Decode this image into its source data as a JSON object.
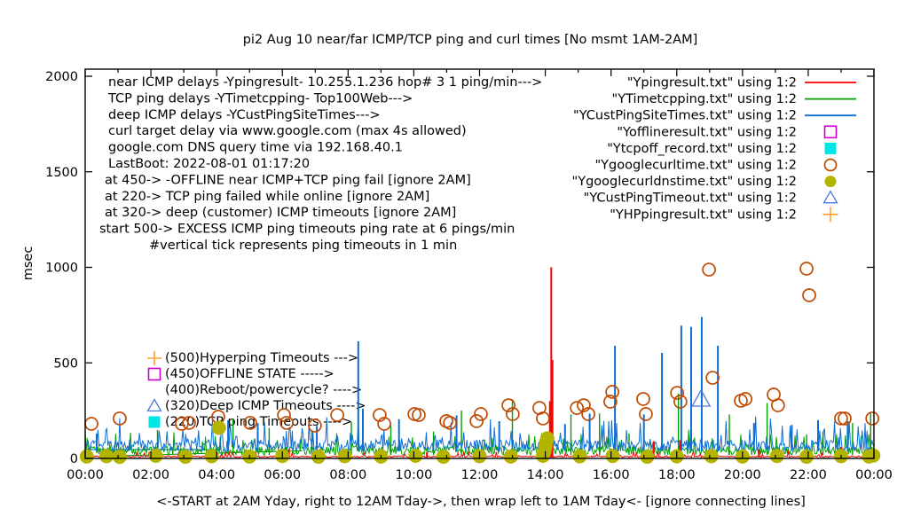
{
  "chart_data": {
    "type": "line",
    "title": "pi2 Aug 10  near/far ICMP/TCP ping and curl times [No msmt 1AM-2AM]",
    "ylabel": "msec",
    "xlabel": "<-START at 2AM Yday, right to 12AM Tday->, then wrap left to 1AM Tday<- [ignore connecting lines]",
    "ylim": [
      0,
      2000
    ],
    "xlim_hours": [
      0,
      24
    ],
    "grid": false,
    "background": "#ffffff",
    "frame_color": "#000000",
    "yticks": [
      {
        "v": 0,
        "label": "0"
      },
      {
        "v": 500,
        "label": "500"
      },
      {
        "v": 1000,
        "label": "1000"
      },
      {
        "v": 1500,
        "label": "1500"
      },
      {
        "v": 2000,
        "label": "2000"
      }
    ],
    "xticks": [
      {
        "h": 0,
        "label": "00:00"
      },
      {
        "h": 2,
        "label": "02:00"
      },
      {
        "h": 4,
        "label": "04:00"
      },
      {
        "h": 6,
        "label": "06:00"
      },
      {
        "h": 8,
        "label": "08:00"
      },
      {
        "h": 10,
        "label": "10:00"
      },
      {
        "h": 12,
        "label": "12:00"
      },
      {
        "h": 14,
        "label": "14:00"
      },
      {
        "h": 16,
        "label": "16:00"
      },
      {
        "h": 18,
        "label": "18:00"
      },
      {
        "h": 20,
        "label": "20:00"
      },
      {
        "h": 22,
        "label": "22:00"
      },
      {
        "h": 24,
        "label": "00:00"
      }
    ],
    "xtick_minor_hours": [
      1,
      3,
      5,
      7,
      9,
      11,
      13,
      15,
      17,
      19,
      21,
      23
    ],
    "legend_position": "top-right",
    "legend": [
      {
        "label": "\"Ypingresult.txt\" using 1:2",
        "sample": "line",
        "color": "#ff0000"
      },
      {
        "label": "\"YTimetcpping.txt\" using 1:2",
        "sample": "line",
        "color": "#00a000"
      },
      {
        "label": "\"YCustPingSiteTimes.txt\" using 1:2",
        "sample": "line",
        "color": "#0e6ed4"
      },
      {
        "label": "\"Yofflineresult.txt\" using 1:2",
        "sample": "square-open",
        "color": "#cc00cc"
      },
      {
        "label": "\"Ytcpoff_record.txt\" using 1:2",
        "sample": "square-filled",
        "color": "#00e6e6"
      },
      {
        "label": "\"Ygooglecurltime.txt\" using 1:2",
        "sample": "circle-open",
        "color": "#c04a00"
      },
      {
        "label": "\"Ygooglecurldnstime.txt\" using 1:2",
        "sample": "circle-filled",
        "color": "#b4b400"
      },
      {
        "label": "\"YCustPingTimeout.txt\" using 1:2",
        "sample": "triangle-open",
        "color": "#4a78d8"
      },
      {
        "label": "\"YHPpingresult.txt\" using 1:2",
        "sample": "plus",
        "color": "#ffa030"
      }
    ],
    "info_annotations": [
      {
        "x": 122,
        "text": "near ICMP delays -Ypingresult- 10.255.1.236 hop# 3 1 ping/min--->"
      },
      {
        "x": 122,
        "text": "TCP ping delays -YTimetcpping- Top100Web--->"
      },
      {
        "x": 122,
        "text": "deep ICMP delays -YCustPingSiteTimes--->"
      },
      {
        "x": 122,
        "text": "curl target delay via www.google.com (max 4s allowed)"
      },
      {
        "x": 122,
        "text": "google.com DNS query time via 192.168.40.1"
      },
      {
        "x": 122,
        "text": "LastBoot: 2022-08-01 01:17:20"
      },
      {
        "x": 118,
        "text": "at 450-> -OFFLINE near ICMP+TCP ping fail [ignore 2AM]"
      },
      {
        "x": 118,
        "text": "at 220-> TCP ping failed while online [ignore 2AM]"
      },
      {
        "x": 118,
        "text": "at 320-> deep (customer) ICMP timeouts [ignore 2AM]"
      },
      {
        "x": 112,
        "text": "start 500-> EXCESS ICMP ping timeouts ping rate at 6 pings/min"
      },
      {
        "x": 168,
        "text": "#vertical tick represents ping timeouts in 1 min"
      }
    ],
    "key_annotations": [
      {
        "marker": "plus",
        "color": "#ffa030",
        "text": "(500)Hyperping Timeouts --->"
      },
      {
        "marker": "square-open",
        "color": "#cc00cc",
        "text": "(450)OFFLINE STATE ----->"
      },
      {
        "marker": "none",
        "color": "#000000",
        "text": "(400)Reboot/powercycle? ---->"
      },
      {
        "marker": "triangle-open",
        "color": "#4a78d8",
        "text": "(320)Deep ICMP Timeouts ---->"
      },
      {
        "marker": "square-filled",
        "color": "#00e6e6",
        "text": "(220)TCP ping Timeouts ---->"
      }
    ],
    "series": [
      {
        "name": "YTimetcpping",
        "color": "#00a000",
        "base": 18,
        "amp": 45,
        "burst_p": 0.88,
        "burst_amp": 110,
        "line_width": 1,
        "spike_width": 1.4,
        "spikes": [
          [
            2.2,
            150
          ],
          [
            4.5,
            205
          ],
          [
            5.6,
            160
          ],
          [
            6.9,
            140
          ],
          [
            8.1,
            190
          ],
          [
            9.3,
            170
          ],
          [
            10.6,
            140
          ],
          [
            11.45,
            250
          ],
          [
            13.0,
            310
          ],
          [
            14.78,
            230
          ],
          [
            15.65,
            235
          ],
          [
            16.55,
            130
          ],
          [
            18.05,
            340
          ],
          [
            19.6,
            230
          ],
          [
            20.75,
            290
          ],
          [
            21.95,
            125
          ],
          [
            22.45,
            140
          ],
          [
            23.35,
            185
          ],
          [
            23.9,
            240
          ]
        ]
      },
      {
        "name": "YCustPingSiteTimes",
        "color": "#0e6ed4",
        "base": 38,
        "amp": 60,
        "burst_p": 0.86,
        "burst_amp": 130,
        "line_width": 1,
        "spike_width": 2,
        "spikes": [
          [
            0.35,
            130
          ],
          [
            4.35,
            200
          ],
          [
            5.25,
            185
          ],
          [
            7.05,
            170
          ],
          [
            8.31,
            613
          ],
          [
            8.45,
            260
          ],
          [
            9.55,
            205
          ],
          [
            11.3,
            225
          ],
          [
            12.6,
            195
          ],
          [
            14.6,
            180
          ],
          [
            15.35,
            235
          ],
          [
            16.12,
            590
          ],
          [
            17.0,
            230
          ],
          [
            17.55,
            552
          ],
          [
            18.14,
            695
          ],
          [
            18.44,
            688
          ],
          [
            18.76,
            740
          ],
          [
            19.25,
            590
          ],
          [
            20.35,
            185
          ],
          [
            21.5,
            175
          ],
          [
            22.3,
            200
          ],
          [
            23.2,
            195
          ]
        ]
      },
      {
        "name": "Ypingresult",
        "color": "#ff0000",
        "base": 6,
        "amp": 7,
        "burst_p": 0.92,
        "burst_amp": 28,
        "line_width": 1,
        "spike_width": 2,
        "spikes": [
          [
            3.1,
            40
          ],
          [
            6.2,
            50
          ],
          [
            10.4,
            35
          ],
          [
            14.14,
            300
          ],
          [
            14.18,
            1000
          ],
          [
            14.22,
            515
          ],
          [
            17.3,
            90
          ],
          [
            18.1,
            95
          ],
          [
            20.5,
            45
          ],
          [
            23.0,
            60
          ]
        ]
      }
    ],
    "connectors": [
      {
        "color": "#0e6ed4",
        "points": [
          [
            0,
            46
          ],
          [
            4.1,
            46
          ]
        ]
      },
      {
        "color": "#00a000",
        "points": [
          [
            1.05,
            14
          ],
          [
            6.6,
            40
          ]
        ]
      }
    ],
    "markers": {
      "curl_circles": {
        "shape": "circle-open",
        "color": "#c04a00",
        "points": [
          [
            0.19,
            181
          ],
          [
            1.05,
            209
          ],
          [
            2.94,
            181
          ],
          [
            3.16,
            186
          ],
          [
            4.05,
            218
          ],
          [
            5.02,
            186
          ],
          [
            6.05,
            227
          ],
          [
            6.13,
            186
          ],
          [
            6.99,
            172
          ],
          [
            7.67,
            227
          ],
          [
            8.96,
            227
          ],
          [
            9.1,
            181
          ],
          [
            10.02,
            232
          ],
          [
            10.15,
            227
          ],
          [
            10.99,
            195
          ],
          [
            11.1,
            186
          ],
          [
            11.91,
            195
          ],
          [
            12.04,
            232
          ],
          [
            12.88,
            278
          ],
          [
            13.01,
            232
          ],
          [
            13.82,
            264
          ],
          [
            13.93,
            209
          ],
          [
            14.96,
            264
          ],
          [
            15.17,
            278
          ],
          [
            15.31,
            232
          ],
          [
            15.98,
            297
          ],
          [
            16.04,
            348
          ],
          [
            16.98,
            311
          ],
          [
            17.06,
            232
          ],
          [
            18.01,
            343
          ],
          [
            18.11,
            297
          ],
          [
            18.98,
            988
          ],
          [
            19.09,
            422
          ],
          [
            19.95,
            302
          ],
          [
            20.09,
            311
          ],
          [
            20.95,
            334
          ],
          [
            21.08,
            278
          ],
          [
            21.95,
            993
          ],
          [
            22.03,
            854
          ],
          [
            23.0,
            209
          ],
          [
            23.11,
            209
          ],
          [
            23.95,
            209
          ]
        ]
      },
      "dns_circles": {
        "shape": "circle-filled",
        "color": "#b4b400",
        "points": [
          [
            0.05,
            10
          ],
          [
            0.65,
            12
          ],
          [
            1.05,
            8
          ],
          [
            2.15,
            14
          ],
          [
            3.05,
            9
          ],
          [
            3.85,
            12
          ],
          [
            4.07,
            160
          ],
          [
            5.0,
            10
          ],
          [
            6.0,
            13
          ],
          [
            7.1,
            9
          ],
          [
            7.9,
            12
          ],
          [
            9.0,
            10
          ],
          [
            10.05,
            14
          ],
          [
            10.9,
            9
          ],
          [
            12.0,
            12
          ],
          [
            12.95,
            10
          ],
          [
            13.93,
            14
          ],
          [
            13.97,
            35
          ],
          [
            14.0,
            60
          ],
          [
            14.03,
            85
          ],
          [
            14.06,
            105
          ],
          [
            15.05,
            11
          ],
          [
            16.05,
            13
          ],
          [
            17.1,
            9
          ],
          [
            18.0,
            11
          ],
          [
            19.05,
            12
          ],
          [
            20.0,
            10
          ],
          [
            21.05,
            13
          ],
          [
            21.95,
            9
          ],
          [
            23.0,
            12
          ],
          [
            23.85,
            10
          ],
          [
            23.98,
            15
          ]
        ]
      },
      "timeout_triangles": {
        "shape": "triangle-open",
        "color": "#4a78d8",
        "points": [
          [
            18.74,
            311
          ]
        ]
      }
    }
  }
}
